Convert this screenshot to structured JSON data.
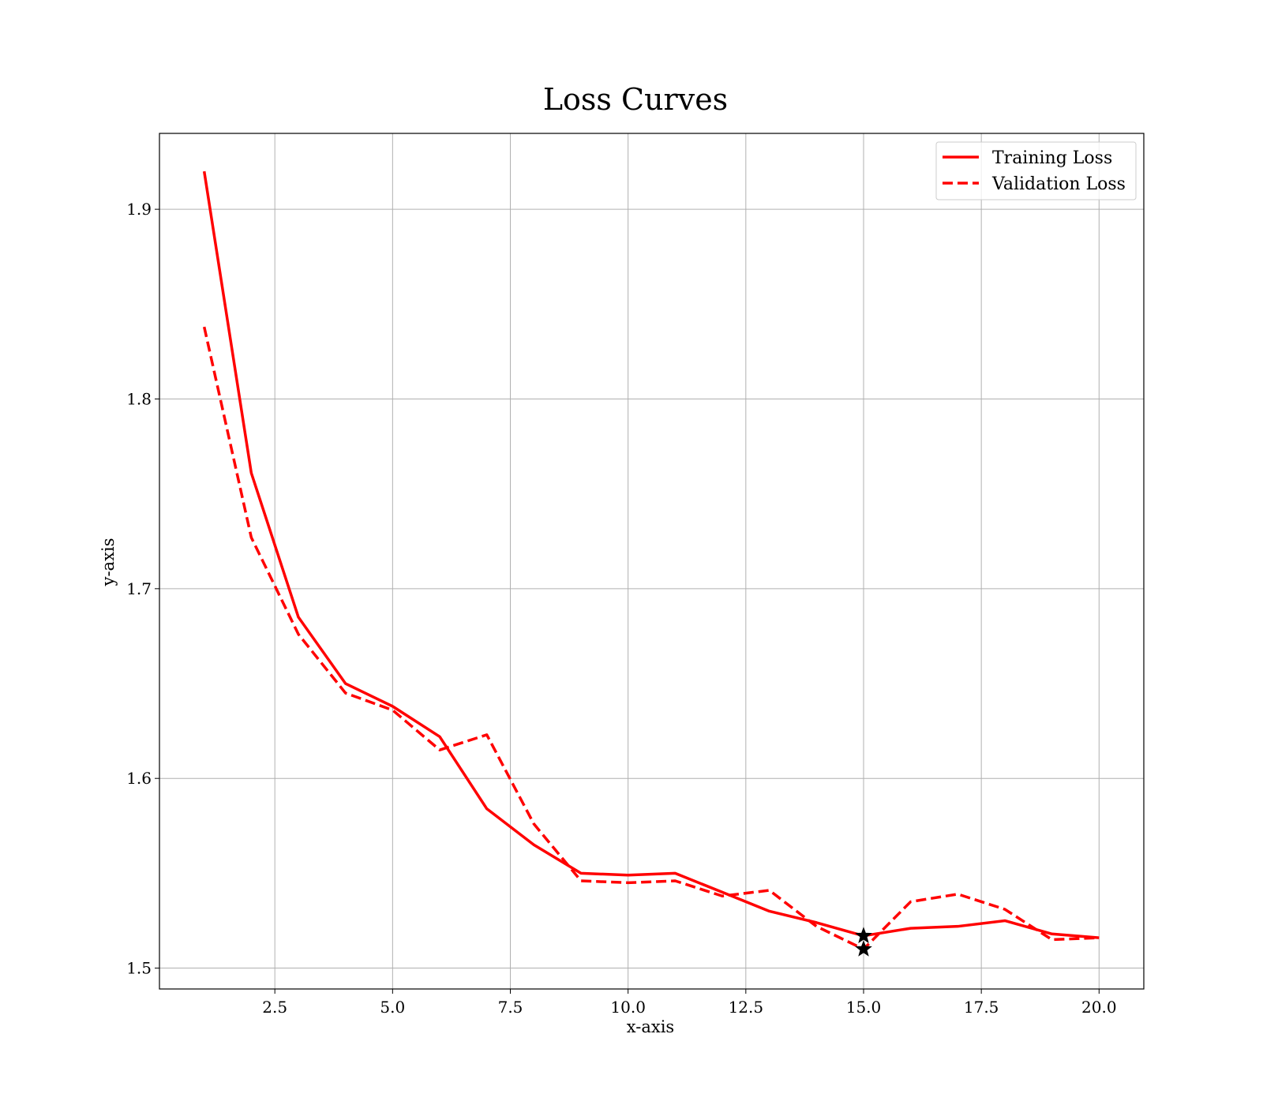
{
  "chart_data": {
    "type": "line",
    "title": "Loss Curves",
    "xlabel": "x-axis",
    "ylabel": "y-axis",
    "xlim": [
      0.05,
      20.95
    ],
    "ylim": [
      1.489,
      1.94
    ],
    "xticks": [
      2.5,
      5.0,
      7.5,
      10.0,
      12.5,
      15.0,
      17.5,
      20.0
    ],
    "xtick_labels": [
      "2.5",
      "5.0",
      "7.5",
      "10.0",
      "12.5",
      "15.0",
      "17.5",
      "20.0"
    ],
    "yticks": [
      1.5,
      1.6,
      1.7,
      1.8,
      1.9
    ],
    "ytick_labels": [
      "1.5",
      "1.6",
      "1.7",
      "1.8",
      "1.9"
    ],
    "grid": true,
    "legend_position": "top-right",
    "x": [
      1,
      2,
      3,
      4,
      5,
      6,
      7,
      8,
      9,
      10,
      11,
      12,
      13,
      14,
      15,
      16,
      17,
      18,
      19,
      20
    ],
    "series": [
      {
        "name": "Training Loss",
        "style": "solid",
        "color": "#ff0000",
        "values": [
          1.92,
          1.761,
          1.685,
          1.65,
          1.638,
          1.622,
          1.584,
          1.565,
          1.55,
          1.549,
          1.55,
          1.54,
          1.53,
          1.524,
          1.517,
          1.521,
          1.522,
          1.525,
          1.518,
          1.516
        ]
      },
      {
        "name": "Validation Loss",
        "style": "dashed",
        "color": "#ff0000",
        "values": [
          1.838,
          1.727,
          1.676,
          1.645,
          1.636,
          1.615,
          1.623,
          1.576,
          1.546,
          1.545,
          1.546,
          1.538,
          1.541,
          1.522,
          1.51,
          1.535,
          1.539,
          1.531,
          1.515,
          1.516
        ]
      }
    ],
    "markers": [
      {
        "series": "Training Loss",
        "x": 15,
        "y": 1.517,
        "shape": "star",
        "color": "#000000"
      },
      {
        "series": "Validation Loss",
        "x": 15,
        "y": 1.51,
        "shape": "star",
        "color": "#000000"
      }
    ]
  }
}
